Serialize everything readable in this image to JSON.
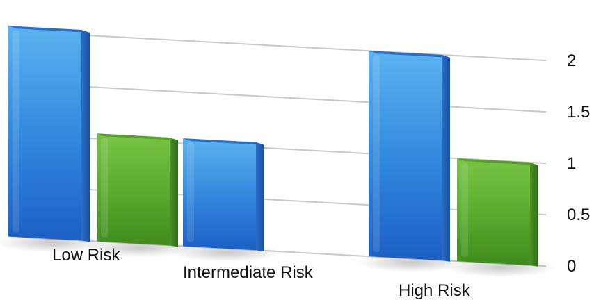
{
  "chart_data": {
    "type": "bar",
    "title": "",
    "xlabel": "",
    "ylabel": "",
    "categories": [
      "Low Risk",
      "Intermediate Risk",
      "High Risk"
    ],
    "series": [
      {
        "color": "#2f7fd8",
        "values": [
          2.05,
          1.05,
          2.0
        ]
      },
      {
        "color": "#5cab2e",
        "values": [
          1.05,
          null,
          1.0
        ]
      }
    ],
    "ylim": [
      0,
      2
    ],
    "yticks": [
      "0",
      "0.5",
      "1",
      "1.5",
      "2"
    ],
    "grid": true,
    "legend": "none",
    "style": "3d perspective"
  }
}
